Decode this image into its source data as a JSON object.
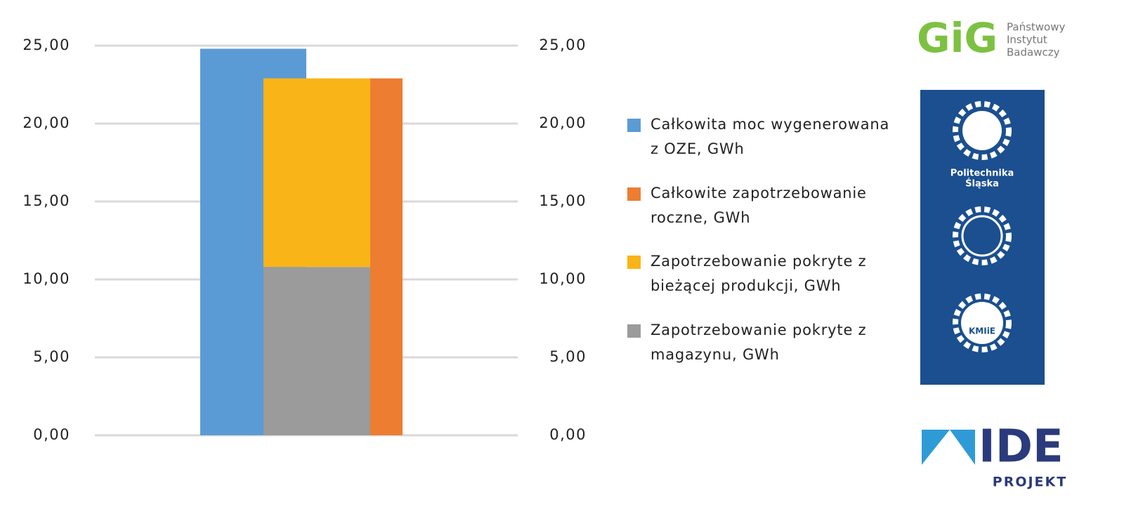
{
  "chart_data": {
    "type": "bar",
    "categories": [
      null
    ],
    "series": [
      {
        "name": "Całkowita moc wygenerowana z OZE, GWh",
        "color": "#5b9bd5",
        "values": [
          24.8
        ]
      },
      {
        "name": "Całkowite zapotrzebowanie roczne, GWh",
        "color": "#ed7d31",
        "values": [
          22.9
        ]
      },
      {
        "name": "Zapotrzebowanie pokryte z bieżącej produkcji, GWh",
        "color": "#f9b418",
        "values": [
          12.1
        ]
      },
      {
        "name": "Zapotrzebowanie pokryte z magazynu, GWh",
        "color": "#9b9b9b",
        "values": [
          10.8
        ]
      }
    ],
    "ylim": [
      0,
      25
    ],
    "yticks": [
      {
        "value": 0,
        "label": "0,00"
      },
      {
        "value": 5,
        "label": "5,00"
      },
      {
        "value": 10,
        "label": "10,00"
      },
      {
        "value": 15,
        "label": "15,00"
      },
      {
        "value": 20,
        "label": "20,00"
      },
      {
        "value": 25,
        "label": "25,00"
      }
    ],
    "y2lim": [
      0,
      25
    ],
    "y2ticks": [
      {
        "value": 0,
        "label": "0,00"
      },
      {
        "value": 5,
        "label": "5,00"
      },
      {
        "value": 10,
        "label": "10,00"
      },
      {
        "value": 15,
        "label": "15,00"
      },
      {
        "value": 20,
        "label": "20,00"
      },
      {
        "value": 25,
        "label": "25,00"
      }
    ],
    "grid": true
  },
  "logos": {
    "gig": {
      "mark": "GiG",
      "text": [
        "Państwowy",
        "Instytut",
        "Badawczy"
      ]
    },
    "polsl": {
      "text": [
        "Politechnika",
        "Śląska"
      ],
      "badge": "KMIiE"
    },
    "ide": {
      "mark": "IDE",
      "text": "PROJEKT"
    }
  }
}
